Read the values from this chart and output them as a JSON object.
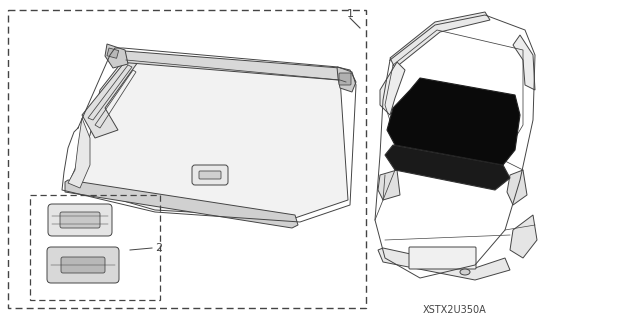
{
  "background_color": "#ffffff",
  "line_color": "#444444",
  "dark_fill": "#0a0a0a",
  "label1": "1",
  "label2": "2",
  "watermark": "XSTX2U350A",
  "fig_width": 6.4,
  "fig_height": 3.19,
  "dpi": 100
}
